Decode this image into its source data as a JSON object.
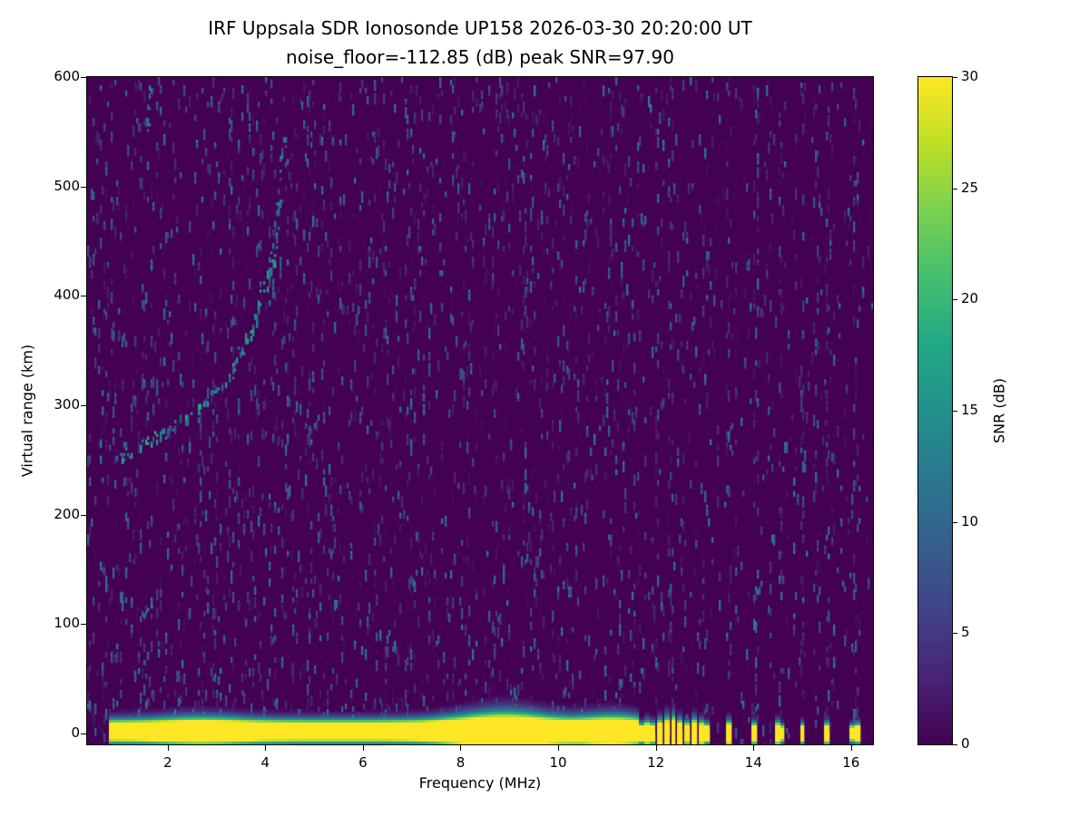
{
  "chart_data": {
    "type": "heatmap",
    "title": "IRF Uppsala SDR Ionosonde UP158 2026-03-30 20:20:00  UT",
    "subtitle": "noise_floor=-112.85 (dB) peak SNR=97.90",
    "xlabel": "Frequency (MHz)",
    "ylabel": "Virtual range (km)",
    "xlim": [
      0.35,
      16.45
    ],
    "ylim": [
      -10,
      600
    ],
    "x_ticks": [
      2,
      4,
      6,
      8,
      10,
      12,
      14,
      16
    ],
    "y_ticks": [
      0,
      100,
      200,
      300,
      400,
      500,
      600
    ],
    "noise_floor_db": -112.85,
    "peak_snr_db": 97.9,
    "colorbar": {
      "label": "SNR (dB)",
      "min": 0,
      "max": 30,
      "ticks": [
        0,
        5,
        10,
        15,
        20,
        25,
        30
      ],
      "colormap": "viridis"
    },
    "colormap_stops": [
      [
        0,
        68,
        1,
        84
      ],
      [
        0.1,
        72,
        36,
        117
      ],
      [
        0.2,
        65,
        68,
        135
      ],
      [
        0.3,
        53,
        95,
        141
      ],
      [
        0.4,
        42,
        120,
        142
      ],
      [
        0.5,
        33,
        145,
        140
      ],
      [
        0.6,
        34,
        168,
        132
      ],
      [
        0.7,
        68,
        190,
        112
      ],
      [
        0.8,
        122,
        209,
        81
      ],
      [
        0.9,
        189,
        223,
        38
      ],
      [
        1,
        253,
        231,
        37
      ]
    ],
    "features": {
      "background_color": "#440154",
      "ground_return": {
        "f_start": 0.8,
        "f_end": 11.65,
        "center_km": 2,
        "sigma_km": 6.5,
        "peak_db": 60,
        "bumps": [
          {
            "f": 8.9,
            "width": 0.8,
            "extra_sigma": 4.5
          },
          {
            "f": 2.7,
            "width": 0.7,
            "extra_sigma": 1.5
          },
          {
            "f": 11.1,
            "width": 0.5,
            "extra_sigma": 2.5
          }
        ]
      },
      "echo_trace": {
        "segments": [
          {
            "points": [
              [
                1.0,
                252
              ],
              [
                1.3,
                258
              ],
              [
                1.6,
                266
              ],
              [
                1.9,
                274
              ],
              [
                2.2,
                283
              ],
              [
                2.5,
                294
              ],
              [
                2.8,
                304
              ],
              [
                3.0,
                312
              ],
              [
                3.2,
                322
              ],
              [
                3.4,
                336
              ],
              [
                3.6,
                354
              ],
              [
                3.8,
                377
              ],
              [
                3.95,
                400
              ],
              [
                4.1,
                424
              ],
              [
                4.2,
                445
              ]
            ],
            "density": 0.8,
            "jitter_f": 0.07,
            "jitter_km": 5,
            "db": [
              8,
              20
            ]
          },
          {
            "points": [
              [
                4.22,
                458
              ],
              [
                4.3,
                492
              ],
              [
                4.36,
                525
              ],
              [
                4.4,
                550
              ]
            ],
            "density": 0.35,
            "jitter_f": 0.05,
            "jitter_km": 8,
            "db": [
              6,
              14
            ]
          },
          {
            "points": [
              [
                1.42,
                104
              ],
              [
                1.55,
                110
              ],
              [
                1.68,
                116
              ]
            ],
            "density": 0.55,
            "jitter_f": 0.04,
            "jitter_km": 3,
            "db": [
              8,
              16
            ]
          },
          {
            "points": [
              [
                1.58,
                550
              ],
              [
                1.62,
                572
              ],
              [
                1.66,
                594
              ]
            ],
            "density": 0.5,
            "jitter_f": 0.03,
            "jitter_km": 5,
            "db": [
              6,
              14
            ]
          }
        ]
      },
      "ground_bursts": [
        {
          "f": 11.7,
          "h": 12
        },
        {
          "f": 11.82,
          "h": 15
        },
        {
          "f": 11.95,
          "h": 13
        },
        {
          "f": 12.08,
          "h": 17
        },
        {
          "f": 12.22,
          "h": 20
        },
        {
          "f": 12.36,
          "h": 22
        },
        {
          "f": 12.5,
          "h": 17
        },
        {
          "f": 12.64,
          "h": 14
        },
        {
          "f": 12.78,
          "h": 18
        },
        {
          "f": 12.92,
          "h": 15
        },
        {
          "f": 13.05,
          "h": 12
        },
        {
          "f": 13.5,
          "h": 15
        },
        {
          "f": 14.02,
          "h": 13
        },
        {
          "f": 14.5,
          "h": 14
        },
        {
          "f": 14.58,
          "h": 10
        },
        {
          "f": 15.0,
          "h": 12
        },
        {
          "f": 15.5,
          "h": 13
        },
        {
          "f": 16.02,
          "h": 10
        },
        {
          "f": 16.12,
          "h": 12
        }
      ],
      "rfi_stripes": [
        {
          "f": 2.95,
          "p": 0.05
        },
        {
          "f": 4.15,
          "p": 0.04
        },
        {
          "f": 5.0,
          "p": 0.05
        },
        {
          "f": 6.9,
          "p": 0.04
        },
        {
          "f": 9.3,
          "p": 0.05
        },
        {
          "f": 11.3,
          "p": 0.05
        },
        {
          "f": 12.02,
          "p": 0.09
        },
        {
          "f": 12.3,
          "p": 0.07
        },
        {
          "f": 12.55,
          "p": 0.06
        },
        {
          "f": 13.0,
          "p": 0.07
        },
        {
          "f": 13.5,
          "p": 0.06
        },
        {
          "f": 14.05,
          "p": 0.11
        },
        {
          "f": 14.3,
          "p": 0.05
        },
        {
          "f": 14.55,
          "p": 0.08
        },
        {
          "f": 15.0,
          "p": 0.06
        },
        {
          "f": 15.3,
          "p": 0.05
        },
        {
          "f": 15.55,
          "p": 0.07
        },
        {
          "f": 16.1,
          "p": 0.08
        }
      ]
    }
  }
}
